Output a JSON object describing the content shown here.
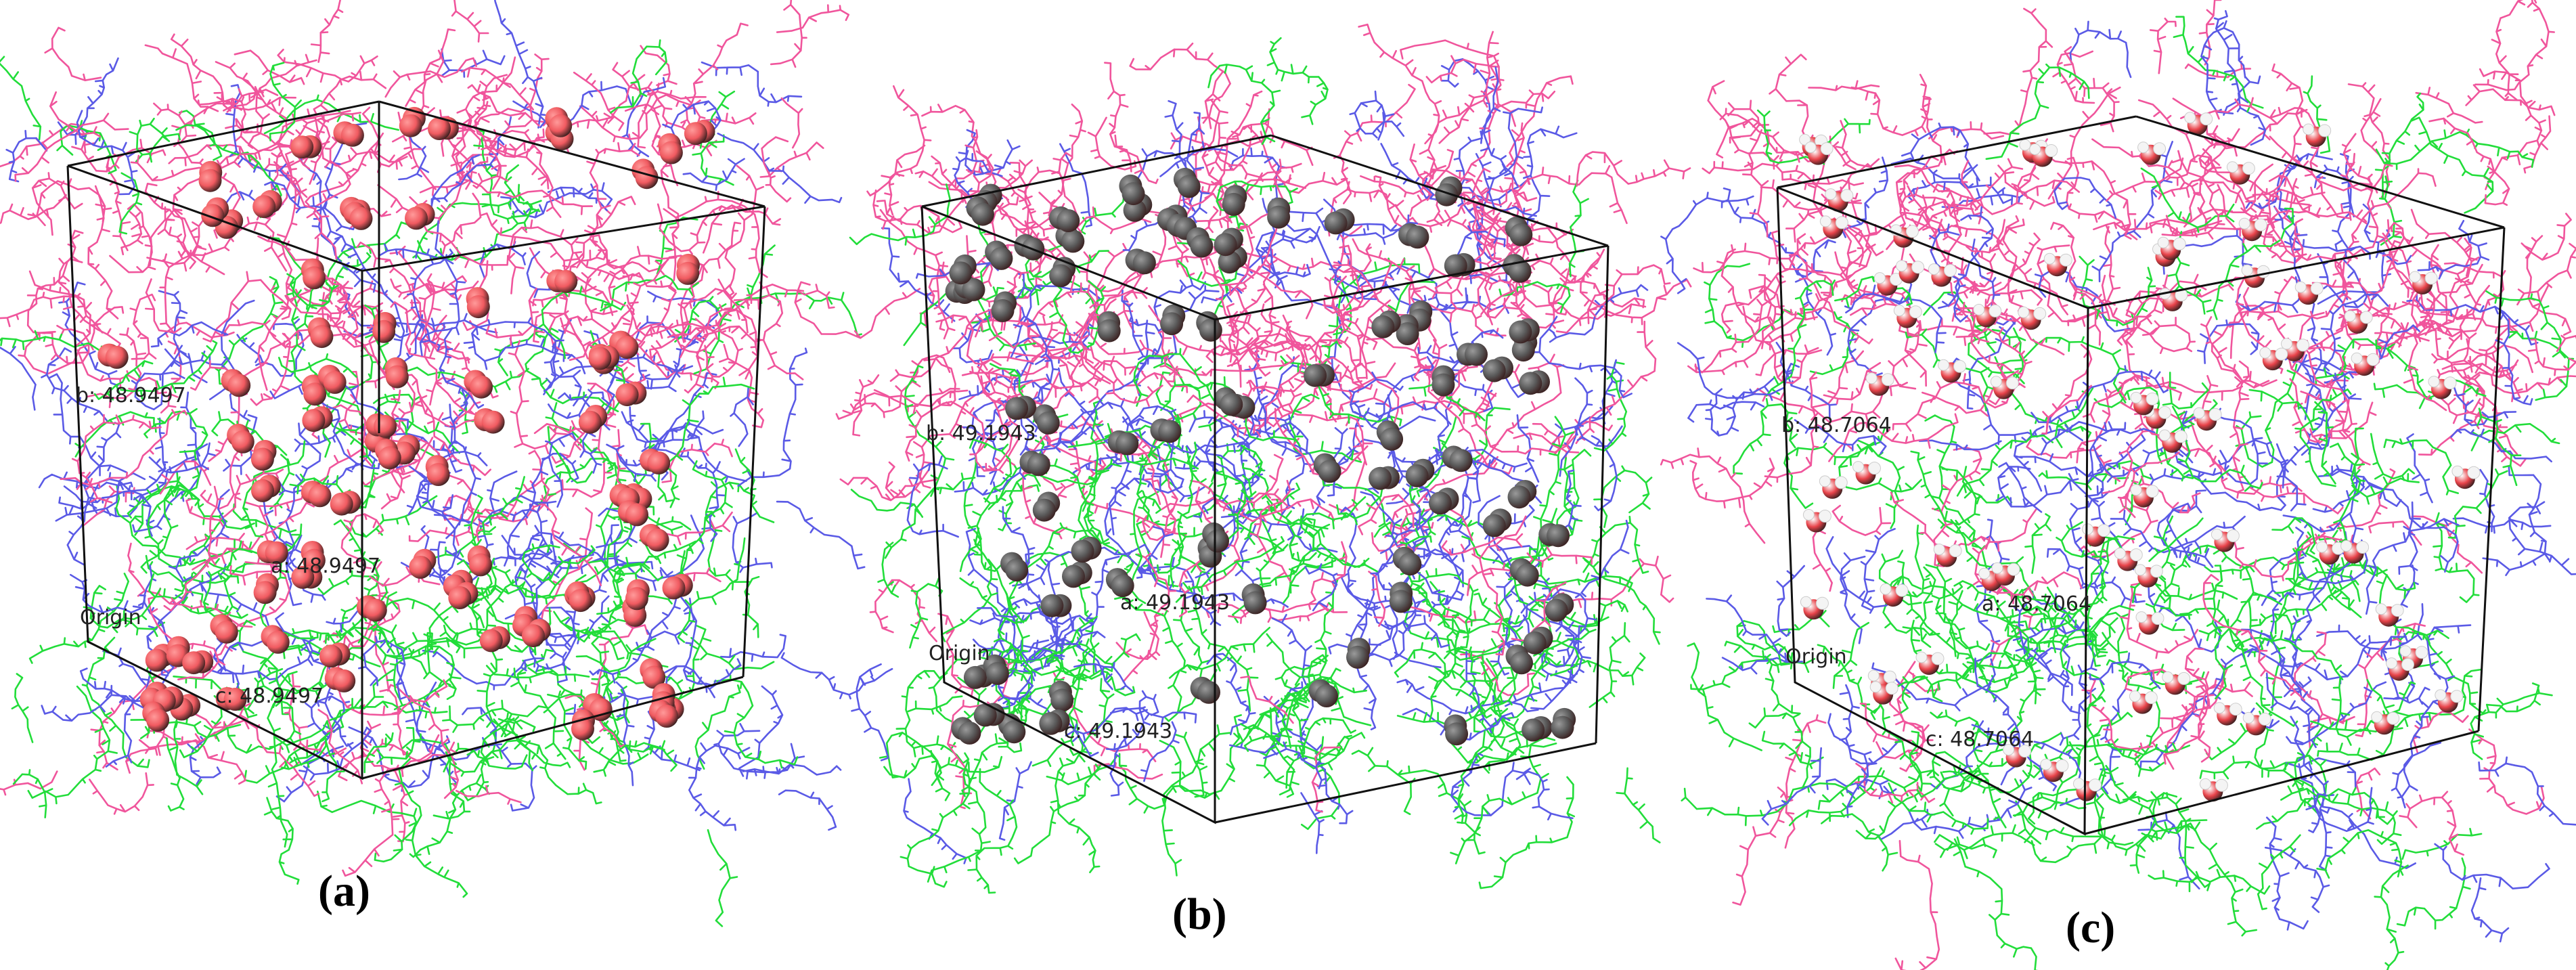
{
  "figure": {
    "panels": [
      {
        "caption": "(a)",
        "labels": {
          "a": "a: 48.9497",
          "b": "b: 48.9497",
          "c": "c: 48.9497",
          "origin": "Origin"
        },
        "particle": {
          "kind": "red-spheres",
          "color": "#f05a60",
          "highlight": "#ff9a9a"
        }
      },
      {
        "caption": "(b)",
        "labels": {
          "a": "a: 49.1943",
          "b": "b: 49.1943",
          "c": "c: 49.1943",
          "origin": "Origin"
        },
        "particle": {
          "kind": "grey-spheres",
          "color": "#5a5a5a",
          "highlight": "#9a9a9a"
        }
      },
      {
        "caption": "(c)",
        "labels": {
          "a": "a: 48.7064",
          "b": "b: 48.7064",
          "c": "c: 48.7064",
          "origin": "Origin"
        },
        "particle": {
          "kind": "water-molecules",
          "color": "#e8434a",
          "highlight": "#ffffff"
        }
      }
    ],
    "stick_colors": {
      "pink": "#f0559c",
      "blue": "#5a5ae6",
      "green": "#22dd3a"
    }
  }
}
